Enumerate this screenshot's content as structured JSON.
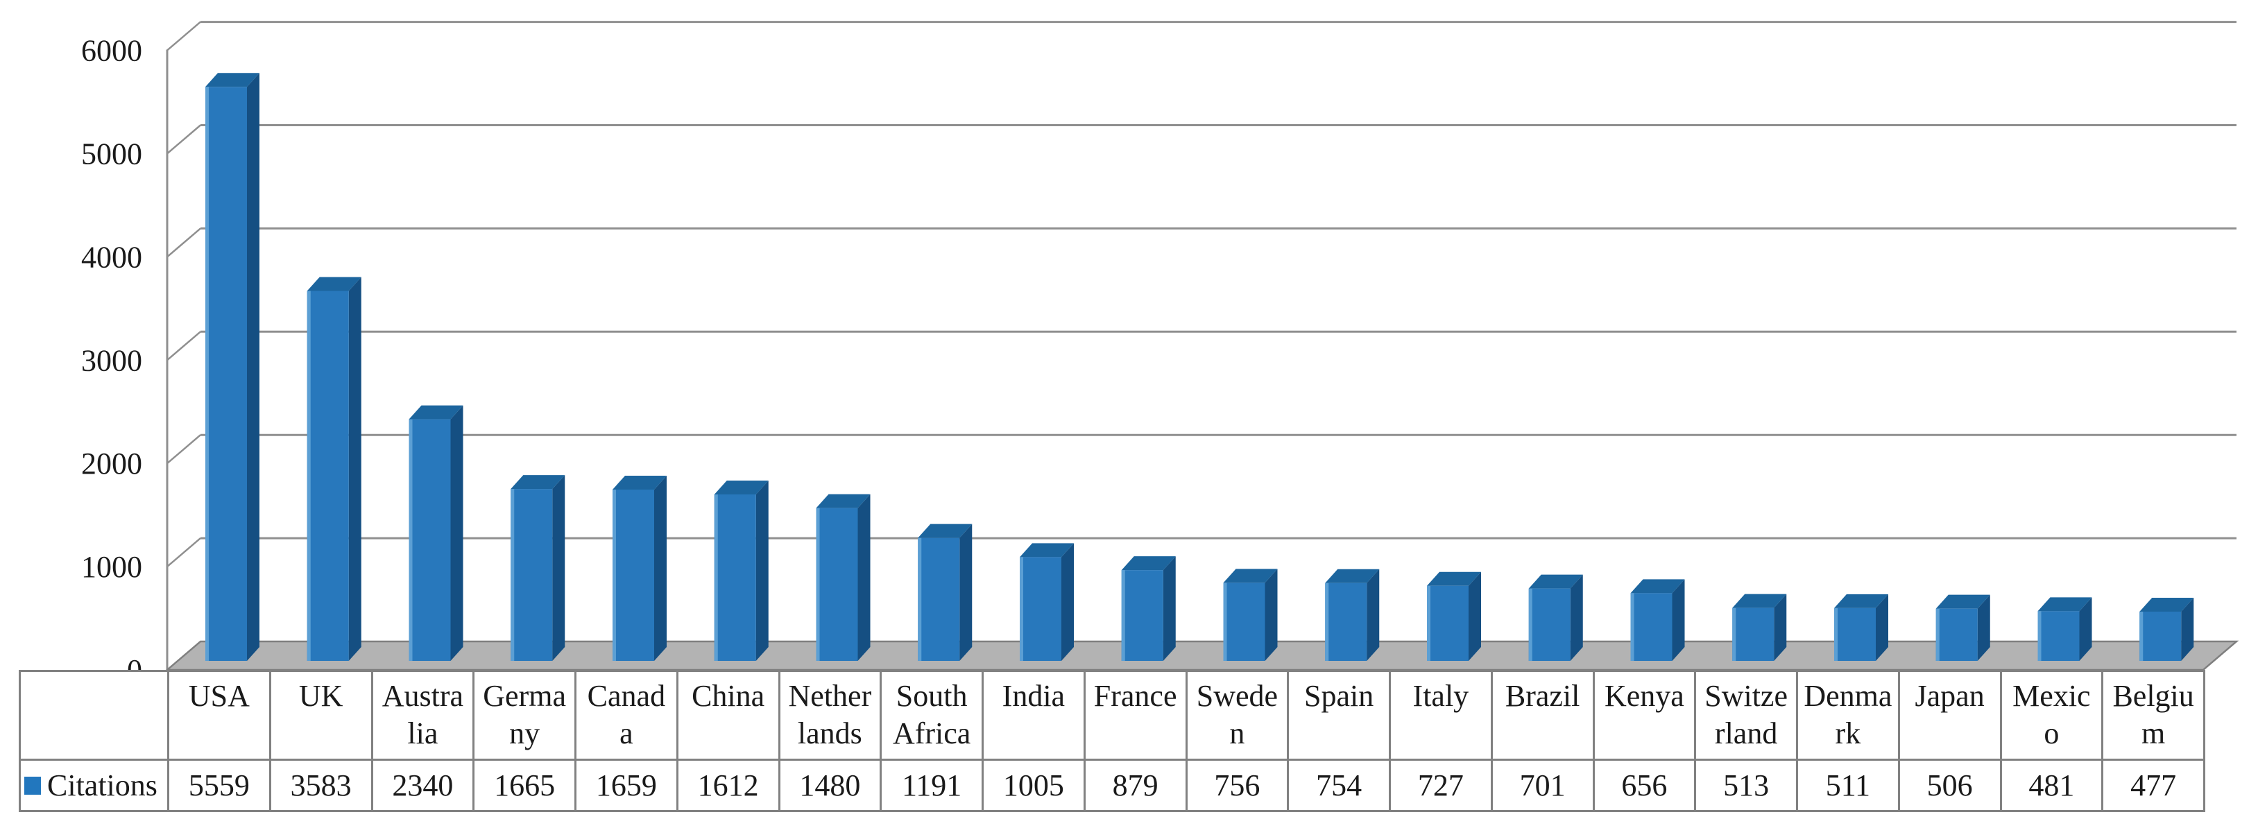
{
  "chart_data": {
    "type": "bar",
    "style": "3d-column",
    "title": "",
    "xlabel": "",
    "ylabel": "",
    "categories": [
      "USA",
      "UK",
      "Australia",
      "Germany",
      "Canada",
      "China",
      "Netherlands",
      "South Africa",
      "India",
      "France",
      "Sweden",
      "Spain",
      "Italy",
      "Brazil",
      "Kenya",
      "Switzerland",
      "Denmark",
      "Japan",
      "Mexico",
      "Belgium"
    ],
    "series": [
      {
        "name": "Citations",
        "values": [
          5559,
          3583,
          2340,
          1665,
          1659,
          1612,
          1480,
          1191,
          1005,
          879,
          756,
          754,
          727,
          701,
          656,
          513,
          511,
          506,
          481,
          477
        ]
      }
    ],
    "ylim": [
      0,
      6000
    ],
    "yticks": [
      0,
      1000,
      2000,
      3000,
      4000,
      5000,
      6000
    ],
    "ytick_labels": [
      "0",
      "1000",
      "2000",
      "3000",
      "4000",
      "5000",
      "6000"
    ],
    "grid": true,
    "legend": {
      "position": "bottom-table-left",
      "entries": [
        "Citations"
      ]
    },
    "data_table_shown": true
  },
  "table": {
    "legend_label": "Citations",
    "header_labels": [
      "USA",
      "UK",
      "Austra\nlia",
      "Germa\nny",
      "Canad\na",
      "China",
      "Nether\nlands",
      "South\nAfrica",
      "India",
      "France",
      "Swede\nn",
      "Spain",
      "Italy",
      "Brazil",
      "Kenya",
      "Switze\nrland",
      "Denma\nrk",
      "Japan",
      "Mexic\no",
      "Belgiu\nm"
    ],
    "values": [
      "5559",
      "3583",
      "2340",
      "1665",
      "1659",
      "1612",
      "1480",
      "1191",
      "1005",
      "879",
      "756",
      "754",
      "727",
      "701",
      "656",
      "513",
      "511",
      "506",
      "481",
      "477"
    ]
  },
  "colors": {
    "bar_front": "#2878BC",
    "bar_top": "#1C659E",
    "bar_side": "#154F82",
    "bar_highlight": "#5B9FD4",
    "legend_swatch": "#2277BE",
    "grid_line": "#8F8F8F",
    "axis_line": "#8F8F8F",
    "floor_fill": "#B3B3B3",
    "floor_edge": "#7F7F7F",
    "table_border": "#818181",
    "text": "#1A1A1A",
    "background": "#FFFFFF"
  }
}
